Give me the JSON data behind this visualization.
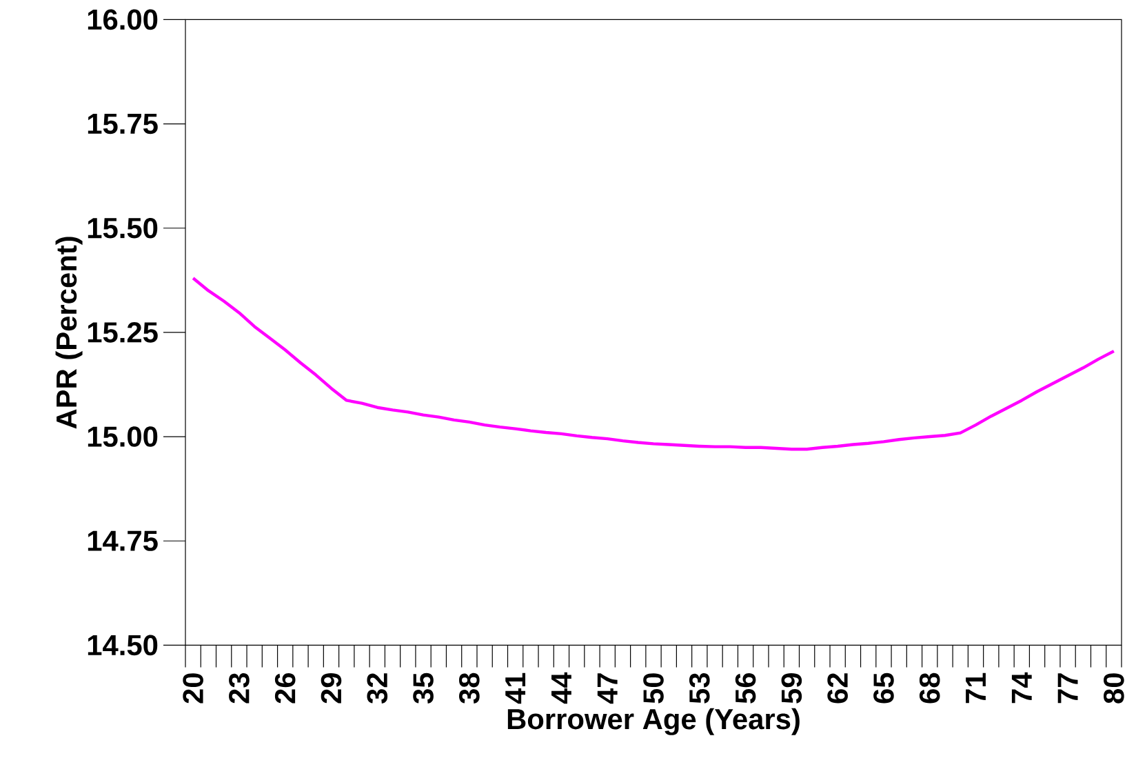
{
  "chart_data": {
    "type": "line",
    "xlabel": "Borrower Age (Years)",
    "ylabel": "APR (Percent)",
    "categories": [
      "20",
      null,
      null,
      "23",
      null,
      null,
      "26",
      null,
      null,
      "29",
      null,
      null,
      "32",
      null,
      null,
      "35",
      null,
      null,
      "38",
      null,
      null,
      "41",
      null,
      null,
      "44",
      null,
      null,
      "47",
      null,
      null,
      "50",
      null,
      null,
      "53",
      null,
      null,
      "56",
      null,
      null,
      "59",
      null,
      null,
      "62",
      null,
      null,
      "65",
      null,
      null,
      "68",
      null,
      null,
      "71",
      null,
      null,
      "74",
      null,
      null,
      "77",
      null,
      null,
      "80"
    ],
    "series": [
      {
        "color": "#ff00ff",
        "values": [
          15.38,
          15.35,
          15.325,
          15.297,
          15.264,
          15.236,
          15.208,
          15.177,
          15.148,
          15.116,
          15.087,
          15.08,
          15.07,
          15.064,
          15.059,
          15.052,
          15.047,
          15.04,
          15.035,
          15.028,
          15.023,
          15.019,
          15.014,
          15.01,
          15.007,
          15.002,
          14.998,
          14.995,
          14.99,
          14.986,
          14.983,
          14.981,
          14.979,
          14.977,
          14.976,
          14.976,
          14.974,
          14.974,
          14.972,
          14.97,
          14.97,
          14.974,
          14.977,
          14.981,
          14.984,
          14.988,
          14.993,
          14.997,
          15.0,
          15.003,
          15.009,
          15.028,
          15.049,
          15.068,
          15.087,
          15.108,
          15.127,
          15.146,
          15.165,
          15.186,
          15.205
        ]
      }
    ],
    "ylim": [
      14.5,
      16.0
    ],
    "yticks": [
      {
        "value": 14.5,
        "label": "14.50"
      },
      {
        "value": 14.75,
        "label": "14.75"
      },
      {
        "value": 15.0,
        "label": "15.00"
      },
      {
        "value": 15.25,
        "label": "15.25"
      },
      {
        "value": 15.5,
        "label": "15.50"
      },
      {
        "value": 15.75,
        "label": "15.75"
      },
      {
        "value": 16.0,
        "label": "16.00"
      }
    ]
  }
}
